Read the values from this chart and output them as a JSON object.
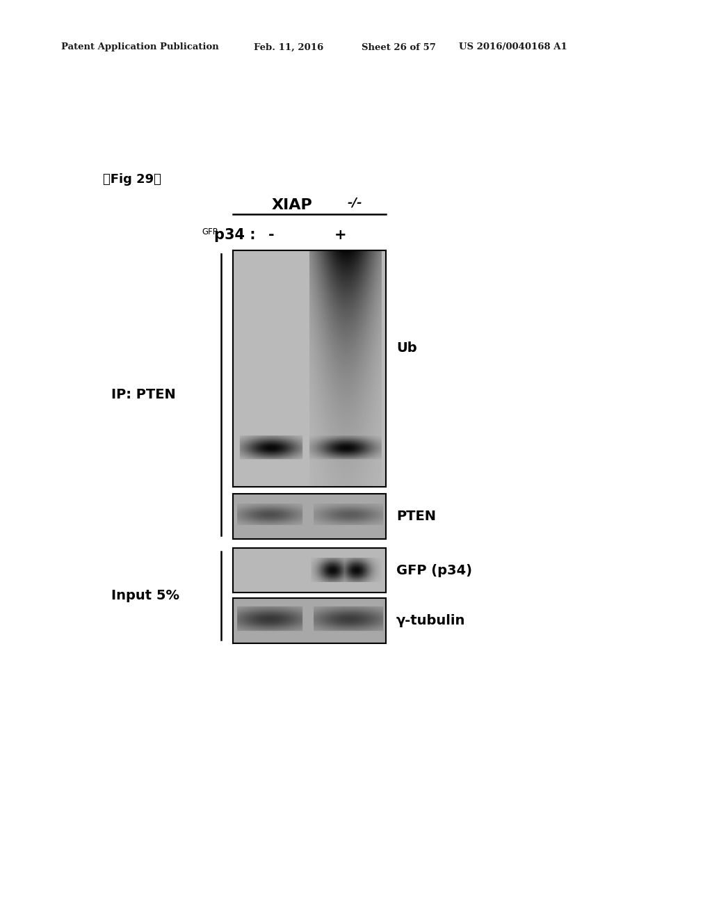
{
  "bg_color": "#ffffff",
  "header_text": "Patent Application Publication",
  "header_date": "Feb. 11, 2016",
  "header_sheet": "Sheet 26 of 57",
  "header_patent": "US 2016/0040168 A1",
  "fig_label": "『Fig 29』",
  "xiap_label": "XIAP",
  "xiap_super": "-/-",
  "gfp_super": "GFP",
  "p34_label": "p34 :",
  "minus_label": "-",
  "plus_label": "+",
  "ip_pten_label": "IP: PTEN",
  "input_label": "Input 5%",
  "ub_label": "Ub",
  "pten_label": "PTEN",
  "gfp_p34_band_label": "GFP (p34)",
  "gamma_tubulin_label": "γ-tubulin"
}
